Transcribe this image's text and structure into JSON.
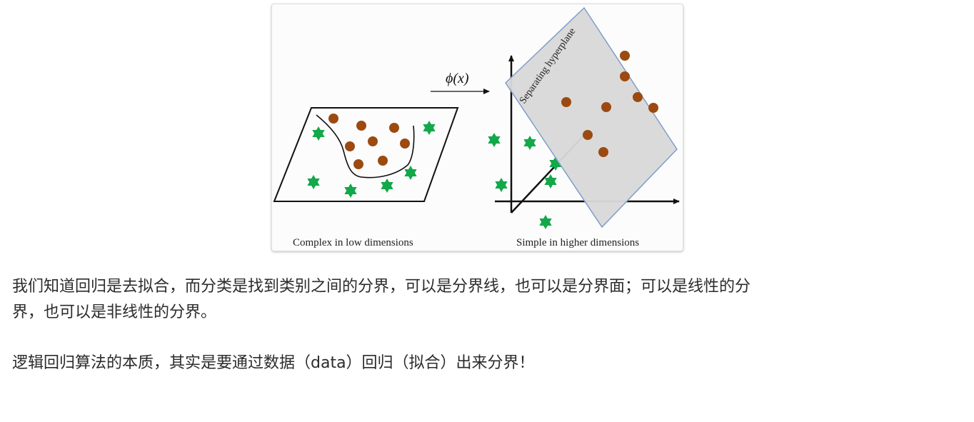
{
  "figure": {
    "mapping_label": "ϕ(x)",
    "hyperplane_label": "Separating hyperplane",
    "left_caption": "Complex in low dimensions",
    "right_caption": "Simple in higher dimensions",
    "colors": {
      "circle": "#9c4a10",
      "star": "#13a84a",
      "plane_fill": "#d9d9d9",
      "plane_stroke": "#7f9dc8",
      "line": "#111111"
    },
    "icons": {
      "circle": "filled-circle",
      "star": "six-point-star",
      "arrow": "right-arrow"
    }
  },
  "text": {
    "paragraph1_line1": "我们知道回归是去拟合，而分类是找到类别之间的分界，可以是分界线，也可以是分界面；可以是线性的分",
    "paragraph1_line2": "界，也可以是非线性的分界。",
    "paragraph2": "逻辑回归算法的本质，其实是要通过数据（data）回归（拟合）出来分界！"
  }
}
